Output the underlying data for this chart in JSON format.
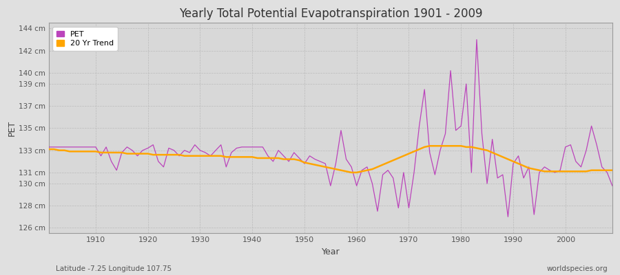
{
  "title": "Yearly Total Potential Evapotranspiration 1901 - 2009",
  "xlabel": "Year",
  "ylabel": "PET",
  "subtitle_left": "Latitude -7.25 Longitude 107.75",
  "subtitle_right": "worldspecies.org",
  "pet_color": "#BB44BB",
  "trend_color": "#FFA500",
  "bg_color": "#E0E0E0",
  "plot_bg_color": "#D8D8D8",
  "grid_color": "#C8C8C8",
  "ylim": [
    125.5,
    144.5
  ],
  "yticks": [
    126,
    128,
    130,
    131,
    133,
    135,
    137,
    139,
    140,
    142,
    144
  ],
  "ytick_labels": [
    "126 cm",
    "128 cm",
    "130 cm",
    "131 cm",
    "133 cm",
    "135 cm",
    "137 cm",
    "139 cm",
    "140 cm",
    "142 cm",
    "144 cm"
  ],
  "xticks": [
    1910,
    1920,
    1930,
    1940,
    1950,
    1960,
    1970,
    1980,
    1990,
    2000
  ],
  "years": [
    1901,
    1902,
    1903,
    1904,
    1905,
    1906,
    1907,
    1908,
    1909,
    1910,
    1911,
    1912,
    1913,
    1914,
    1915,
    1916,
    1917,
    1918,
    1919,
    1920,
    1921,
    1922,
    1923,
    1924,
    1925,
    1926,
    1927,
    1928,
    1929,
    1930,
    1931,
    1932,
    1933,
    1934,
    1935,
    1936,
    1937,
    1938,
    1939,
    1940,
    1941,
    1942,
    1943,
    1944,
    1945,
    1946,
    1947,
    1948,
    1949,
    1950,
    1951,
    1952,
    1953,
    1954,
    1955,
    1956,
    1957,
    1958,
    1959,
    1960,
    1961,
    1962,
    1963,
    1964,
    1965,
    1966,
    1967,
    1968,
    1969,
    1970,
    1971,
    1972,
    1973,
    1974,
    1975,
    1976,
    1977,
    1978,
    1979,
    1980,
    1981,
    1982,
    1983,
    1984,
    1985,
    1986,
    1987,
    1988,
    1989,
    1990,
    1991,
    1992,
    1993,
    1994,
    1995,
    1996,
    1997,
    1998,
    1999,
    2000,
    2001,
    2002,
    2003,
    2004,
    2005,
    2006,
    2007,
    2008,
    2009
  ],
  "pet": [
    133.3,
    133.3,
    133.3,
    133.3,
    133.3,
    133.3,
    133.3,
    133.3,
    133.3,
    133.3,
    132.5,
    133.3,
    132.0,
    131.2,
    132.8,
    133.3,
    133.0,
    132.5,
    133.0,
    133.2,
    133.5,
    132.0,
    131.5,
    133.2,
    133.0,
    132.5,
    133.0,
    132.8,
    133.5,
    133.0,
    132.8,
    132.5,
    133.0,
    133.5,
    131.5,
    132.8,
    133.2,
    133.3,
    133.3,
    133.3,
    133.3,
    133.3,
    132.5,
    132.0,
    133.0,
    132.5,
    132.0,
    132.8,
    132.3,
    131.8,
    132.5,
    132.2,
    132.0,
    131.8,
    129.8,
    131.8,
    134.8,
    132.2,
    131.5,
    129.8,
    131.2,
    131.5,
    130.0,
    127.5,
    130.8,
    131.2,
    130.5,
    127.8,
    131.0,
    127.8,
    131.0,
    135.2,
    138.5,
    132.8,
    130.8,
    133.0,
    134.5,
    140.2,
    134.8,
    135.2,
    139.0,
    131.0,
    143.0,
    134.5,
    130.0,
    134.0,
    130.5,
    130.8,
    127.0,
    131.8,
    132.5,
    130.5,
    131.5,
    127.2,
    131.0,
    131.5,
    131.2,
    131.0,
    131.2,
    133.3,
    133.5,
    132.0,
    131.5,
    133.0,
    135.2,
    133.5,
    131.5,
    131.0,
    129.8
  ],
  "trend": [
    133.1,
    133.1,
    133.0,
    133.0,
    132.9,
    132.9,
    132.9,
    132.9,
    132.9,
    132.9,
    132.8,
    132.8,
    132.8,
    132.8,
    132.8,
    132.7,
    132.7,
    132.7,
    132.7,
    132.7,
    132.6,
    132.6,
    132.6,
    132.6,
    132.6,
    132.6,
    132.5,
    132.5,
    132.5,
    132.5,
    132.5,
    132.5,
    132.5,
    132.5,
    132.4,
    132.4,
    132.4,
    132.4,
    132.4,
    132.4,
    132.3,
    132.3,
    132.3,
    132.3,
    132.3,
    132.2,
    132.2,
    132.2,
    132.1,
    131.9,
    131.8,
    131.7,
    131.6,
    131.5,
    131.4,
    131.3,
    131.2,
    131.1,
    131.0,
    131.0,
    131.1,
    131.2,
    131.3,
    131.5,
    131.7,
    131.9,
    132.1,
    132.3,
    132.5,
    132.7,
    132.9,
    133.1,
    133.3,
    133.4,
    133.4,
    133.4,
    133.4,
    133.4,
    133.4,
    133.4,
    133.3,
    133.3,
    133.2,
    133.1,
    133.0,
    132.8,
    132.6,
    132.4,
    132.2,
    132.0,
    131.8,
    131.6,
    131.4,
    131.3,
    131.2,
    131.1,
    131.1,
    131.1,
    131.1,
    131.1,
    131.1,
    131.1,
    131.1,
    131.1,
    131.2,
    131.2,
    131.2,
    131.2,
    131.2
  ]
}
